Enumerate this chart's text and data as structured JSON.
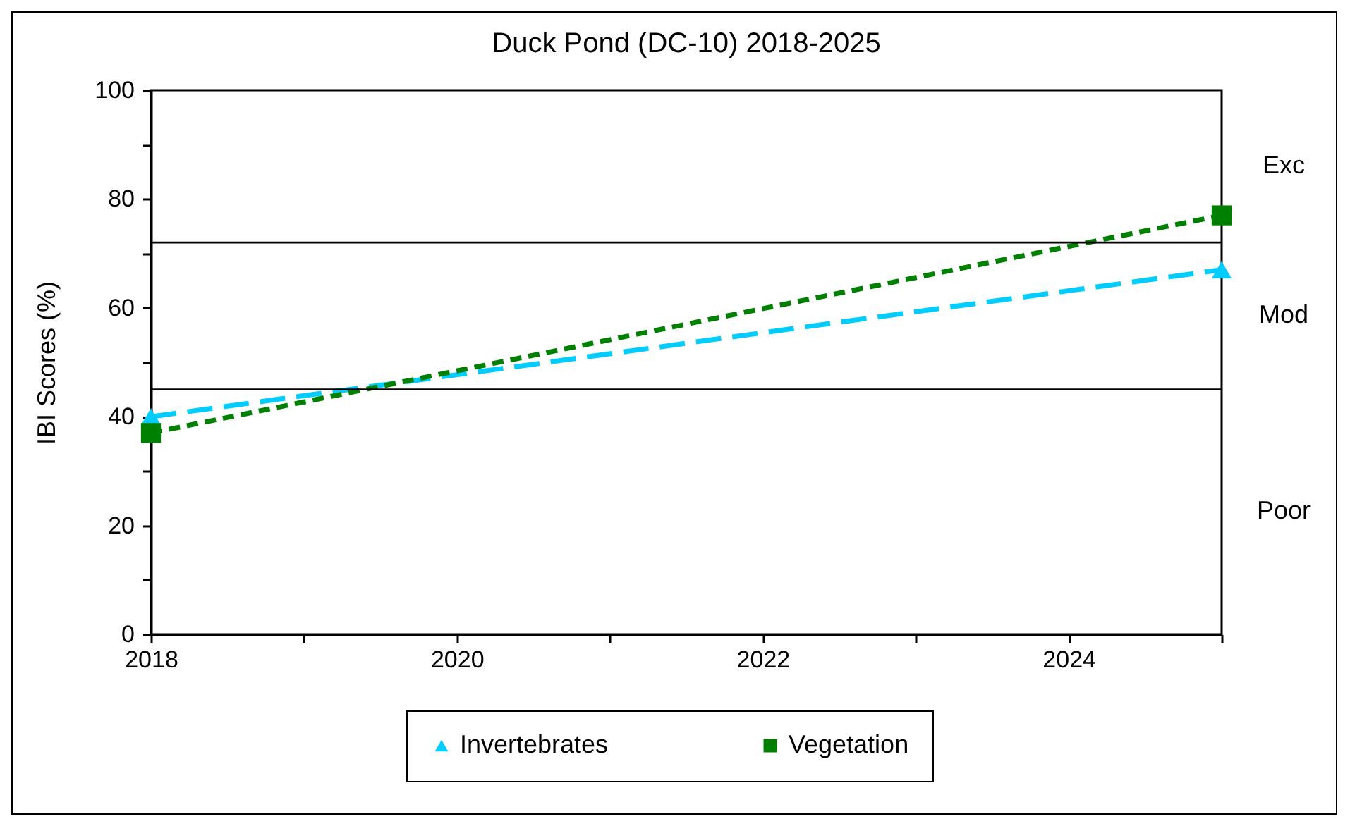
{
  "chart_data": {
    "type": "line",
    "title": "Duck Pond (DC-10) 2018-2025",
    "ylabel": "IBI Scores (%)",
    "x": [
      2018,
      2025
    ],
    "series": [
      {
        "name": "Invertebrates",
        "color": "#00ccff",
        "values": [
          40,
          67
        ],
        "marker": "triangle",
        "line_style": "dashed"
      },
      {
        "name": "Vegetation",
        "color": "#008000",
        "values": [
          37,
          77
        ],
        "marker": "square",
        "line_style": "dotted"
      }
    ],
    "xlim": [
      2018,
      2025
    ],
    "xticks": [
      2018,
      {
        "value": 2019,
        "label": null
      },
      2020,
      {
        "value": 2021,
        "label": null
      },
      2022,
      {
        "value": 2023,
        "label": null
      },
      2024,
      {
        "value": 2025,
        "label": null
      }
    ],
    "ylim": [
      0,
      100
    ],
    "yticks": [
      0,
      {
        "value": 10,
        "label": null
      },
      20,
      {
        "value": 30,
        "label": null
      },
      40,
      {
        "value": 50,
        "label": null
      },
      60,
      {
        "value": 70,
        "label": null
      },
      80,
      {
        "value": 90,
        "label": null
      },
      100
    ],
    "ref_lines": [
      {
        "axis": "y",
        "value": 72,
        "color": "#000000"
      },
      {
        "axis": "y",
        "value": 45,
        "color": "#000000"
      }
    ],
    "annotations": [
      "Exc",
      "Mod",
      "Poor"
    ],
    "grid": false,
    "legend": "bottom"
  }
}
